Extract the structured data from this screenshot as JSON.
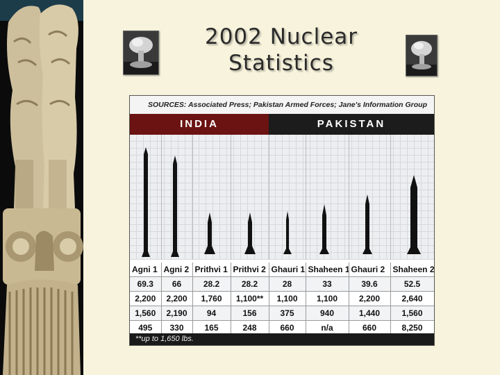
{
  "slide": {
    "title_line1": "2002 Nuclear",
    "title_line2": "Statistics"
  },
  "icons": {
    "left_image": "mushroom-cloud-icon",
    "right_image": "mushroom-cloud-icon",
    "side_image": "lion-capital-icon"
  },
  "colors": {
    "background": "#f7f3dc",
    "india_header": "#6b1212",
    "pakistan_header": "#1c1c1c"
  },
  "graphic": {
    "sources": "SOURCES: Associated Press; Pakistan Armed Forces; Jane's Information Group",
    "country_india": "INDIA",
    "country_pakistan": "PAKISTAN",
    "missiles": [
      "Agni 1",
      "Agni 2",
      "Prithvi 1",
      "Prithvi 2",
      "Ghauri 1",
      "Shaheen 1",
      "Ghauri 2",
      "Shaheen 2"
    ],
    "rows": [
      [
        "69.3",
        "66",
        "28.2",
        "28.2",
        "28",
        "33",
        "39.6",
        "52.5"
      ],
      [
        "2,200",
        "2,200",
        "1,760",
        "1,100**",
        "1,100",
        "1,100",
        "2,200",
        "2,640"
      ],
      [
        "1,560",
        "2,190",
        "94",
        "156",
        "375",
        "940",
        "1,440",
        "1,560"
      ],
      [
        "495",
        "330",
        "165",
        "248",
        "660",
        "n/a",
        "660",
        "8,250"
      ]
    ],
    "footnote": "**up to 1,650 lbs."
  }
}
